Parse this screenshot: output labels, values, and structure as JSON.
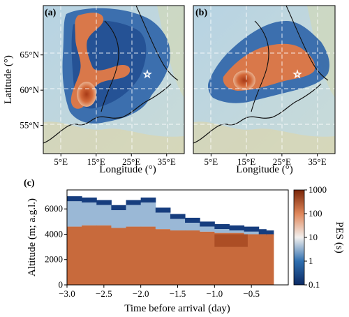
{
  "chart_data": [
    {
      "type": "heatmap",
      "panel": "(a)",
      "xlabel": "Longitude (°)",
      "ylabel": "Latitude (°)",
      "xticks": [
        "5°E",
        "15°E",
        "25°E",
        "35°E"
      ],
      "yticks": [
        "55°N",
        "60°N",
        "65°N"
      ],
      "xlim": [
        0,
        40
      ],
      "ylim": [
        51,
        72
      ],
      "x_tick_values": [
        5,
        15,
        25,
        35
      ],
      "y_tick_values": [
        55,
        60,
        65
      ],
      "receptor_marker": {
        "lon": 24.3,
        "lat": 61.8,
        "symbol": "star"
      },
      "grid": true
    },
    {
      "type": "heatmap",
      "panel": "(b)",
      "xlabel": "Longitude (°)",
      "ylabel": "",
      "xticks": [
        "5°E",
        "15°E",
        "25°E",
        "35°E"
      ],
      "yticks": [],
      "xlim": [
        0,
        40
      ],
      "ylim": [
        51,
        72
      ],
      "x_tick_values": [
        5,
        15,
        25,
        35
      ],
      "receptor_marker": {
        "lon": 24.3,
        "lat": 61.8,
        "symbol": "star"
      },
      "grid": true
    },
    {
      "type": "heatmap",
      "panel": "(c)",
      "xlabel": "Time before arrival (day)",
      "ylabel": "Altitude (m; a.g.l.)",
      "xticks": [
        "−3.0",
        "−2.5",
        "−2.0",
        "−1.5",
        "−1.0",
        "−0.5"
      ],
      "x_tick_values": [
        -3.0,
        -2.5,
        -2.0,
        -1.5,
        -1.0,
        -0.5
      ],
      "yticks": [
        "0",
        "2000",
        "4000",
        "6000"
      ],
      "y_tick_values": [
        0,
        2000,
        4000,
        6000
      ],
      "xlim": [
        -3.0,
        0
      ],
      "ylim": [
        0,
        7500
      ],
      "colorbar": {
        "label": "PES (s)",
        "scale": "log",
        "ticks": [
          "0.1",
          "1",
          "10",
          "100",
          "1000"
        ],
        "tick_values": [
          0.1,
          1,
          10,
          100,
          1000
        ]
      },
      "profile": {
        "time": [
          -3.0,
          -2.8,
          -2.6,
          -2.4,
          -2.2,
          -2.0,
          -1.8,
          -1.6,
          -1.4,
          -1.2,
          -1.0,
          -0.8,
          -0.6,
          -0.4,
          -0.3,
          -0.2
        ],
        "top_altitude": [
          7000,
          6900,
          6700,
          6300,
          6700,
          6900,
          6100,
          5600,
          5300,
          5000,
          4800,
          4700,
          4600,
          4400,
          4300,
          0
        ],
        "high_pes_top": [
          4600,
          4700,
          4700,
          4500,
          4600,
          4600,
          4400,
          4300,
          4300,
          4200,
          4100,
          4100,
          4000,
          4000,
          4000,
          3400
        ]
      }
    }
  ]
}
